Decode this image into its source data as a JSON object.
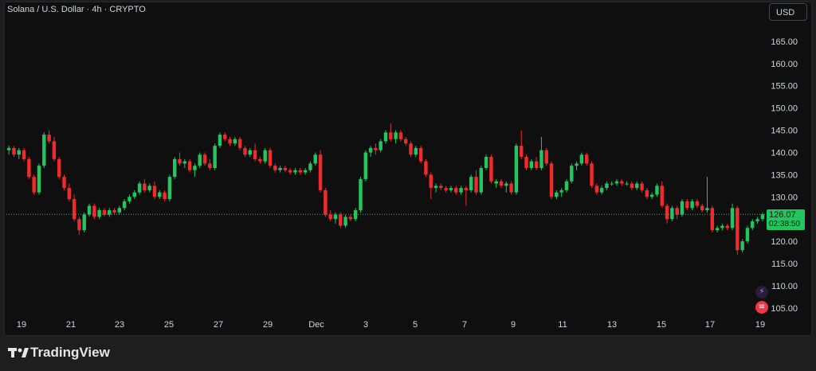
{
  "header": {
    "title": "Solana / U.S. Dollar · 4h · CRYPTO",
    "currency": "USD"
  },
  "price_label": {
    "value": "126.07",
    "countdown": "02:38:50"
  },
  "footer": {
    "brand": "TradingView"
  },
  "colors": {
    "up": "#22c55e",
    "down": "#ef2b2b",
    "background": "#0f0f0f",
    "axis_text": "#d1d4dc",
    "current_price_line": "#22c55e"
  },
  "icons": [
    "flash-indicator-icon",
    "us-flag-icon"
  ],
  "chart_data": {
    "type": "candlestick",
    "title": "Solana / U.S. Dollar · 4h · CRYPTO",
    "ylim": [
      103,
      170
    ],
    "y_ticks": [
      105,
      110,
      115,
      120,
      125,
      130,
      135,
      140,
      145,
      150,
      155,
      160,
      165
    ],
    "y_tick_labels": [
      "105.00",
      "110.00",
      "115.00",
      "120.00",
      "125.00",
      "130.00",
      "135.00",
      "140.00",
      "145.00",
      "150.00",
      "155.00",
      "160.00",
      "165.00"
    ],
    "x_ticks": [
      "19",
      "21",
      "23",
      "25",
      "27",
      "29",
      "Dec",
      "3",
      "5",
      "7",
      "9",
      "11",
      "13",
      "15",
      "17",
      "19"
    ],
    "grid": false,
    "current_price": 126.07,
    "candles": [
      [
        140.5,
        141.5,
        139.5,
        141.0
      ],
      [
        141.0,
        141.5,
        139.0,
        139.5
      ],
      [
        139.5,
        141.0,
        138.5,
        140.5
      ],
      [
        140.5,
        141.0,
        138.0,
        138.5
      ],
      [
        138.5,
        139.0,
        134.0,
        134.5
      ],
      [
        134.5,
        135.0,
        130.5,
        131.0
      ],
      [
        131.0,
        137.5,
        130.5,
        137.0
      ],
      [
        137.0,
        144.5,
        136.5,
        144.0
      ],
      [
        144.0,
        145.0,
        142.0,
        142.5
      ],
      [
        142.5,
        143.5,
        138.0,
        138.5
      ],
      [
        138.5,
        139.0,
        134.0,
        134.5
      ],
      [
        134.5,
        135.0,
        131.5,
        132.0
      ],
      [
        132.0,
        133.0,
        129.0,
        129.5
      ],
      [
        129.5,
        130.5,
        124.5,
        125.0
      ],
      [
        125.0,
        125.5,
        121.5,
        122.5
      ],
      [
        122.5,
        126.5,
        122.0,
        126.0
      ],
      [
        126.0,
        128.5,
        125.5,
        128.0
      ],
      [
        128.0,
        128.5,
        125.0,
        125.5
      ],
      [
        125.5,
        127.5,
        125.0,
        127.0
      ],
      [
        127.0,
        127.5,
        125.5,
        126.0
      ],
      [
        126.0,
        127.5,
        125.5,
        127.0
      ],
      [
        127.0,
        127.5,
        126.0,
        126.5
      ],
      [
        126.5,
        128.0,
        126.0,
        127.5
      ],
      [
        127.5,
        129.5,
        127.0,
        129.0
      ],
      [
        129.0,
        130.5,
        128.5,
        130.0
      ],
      [
        130.0,
        131.5,
        129.5,
        131.0
      ],
      [
        131.0,
        133.5,
        130.5,
        133.0
      ],
      [
        133.0,
        134.0,
        131.0,
        131.5
      ],
      [
        131.5,
        133.0,
        131.0,
        132.5
      ],
      [
        132.5,
        133.5,
        129.5,
        130.0
      ],
      [
        130.0,
        131.5,
        129.5,
        131.0
      ],
      [
        131.0,
        131.5,
        129.0,
        129.5
      ],
      [
        129.5,
        135.0,
        129.0,
        134.5
      ],
      [
        134.5,
        139.0,
        134.0,
        138.5
      ],
      [
        138.5,
        140.0,
        137.0,
        137.5
      ],
      [
        137.5,
        138.5,
        136.5,
        138.0
      ],
      [
        138.0,
        138.5,
        135.5,
        136.0
      ],
      [
        136.0,
        137.5,
        134.5,
        137.0
      ],
      [
        137.0,
        140.0,
        136.5,
        139.5
      ],
      [
        139.5,
        140.0,
        137.0,
        137.5
      ],
      [
        137.5,
        138.5,
        136.0,
        136.5
      ],
      [
        136.5,
        142.0,
        136.0,
        141.5
      ],
      [
        141.5,
        144.5,
        141.0,
        144.0
      ],
      [
        144.0,
        144.5,
        142.5,
        143.0
      ],
      [
        143.0,
        143.5,
        141.5,
        142.0
      ],
      [
        142.0,
        143.5,
        141.5,
        143.0
      ],
      [
        143.0,
        143.5,
        140.5,
        141.0
      ],
      [
        141.0,
        141.5,
        139.0,
        139.5
      ],
      [
        139.5,
        141.0,
        139.0,
        140.5
      ],
      [
        140.5,
        142.0,
        138.0,
        138.5
      ],
      [
        138.5,
        139.0,
        137.5,
        138.0
      ],
      [
        138.0,
        141.0,
        137.5,
        140.5
      ],
      [
        140.5,
        141.0,
        136.5,
        137.0
      ],
      [
        137.0,
        137.5,
        135.5,
        136.0
      ],
      [
        136.0,
        137.0,
        135.5,
        136.5
      ],
      [
        136.5,
        137.0,
        135.5,
        136.0
      ],
      [
        136.0,
        136.5,
        135.0,
        135.5
      ],
      [
        135.5,
        136.5,
        135.0,
        136.0
      ],
      [
        136.0,
        136.5,
        135.0,
        135.5
      ],
      [
        135.5,
        136.5,
        135.0,
        136.0
      ],
      [
        136.0,
        138.0,
        135.5,
        137.5
      ],
      [
        137.5,
        140.0,
        137.0,
        139.5
      ],
      [
        139.5,
        140.5,
        131.0,
        131.5
      ],
      [
        131.5,
        132.0,
        125.5,
        126.0
      ],
      [
        126.0,
        127.0,
        124.5,
        125.0
      ],
      [
        125.0,
        126.5,
        124.0,
        126.0
      ],
      [
        126.0,
        126.5,
        123.0,
        123.5
      ],
      [
        123.5,
        126.0,
        123.0,
        125.5
      ],
      [
        125.5,
        126.0,
        124.5,
        125.0
      ],
      [
        125.0,
        127.5,
        124.5,
        127.0
      ],
      [
        127.0,
        134.5,
        126.5,
        134.0
      ],
      [
        134.0,
        140.5,
        133.5,
        140.0
      ],
      [
        140.0,
        141.5,
        139.0,
        141.0
      ],
      [
        141.0,
        142.0,
        139.5,
        140.5
      ],
      [
        140.5,
        143.0,
        140.0,
        142.5
      ],
      [
        142.5,
        145.0,
        142.0,
        144.5
      ],
      [
        144.5,
        146.5,
        142.5,
        143.0
      ],
      [
        143.0,
        145.0,
        142.0,
        144.5
      ],
      [
        144.5,
        145.0,
        142.5,
        143.0
      ],
      [
        143.0,
        143.5,
        141.5,
        142.0
      ],
      [
        142.0,
        142.5,
        139.0,
        139.5
      ],
      [
        139.5,
        141.5,
        139.0,
        141.0
      ],
      [
        141.0,
        141.5,
        137.5,
        138.0
      ],
      [
        138.0,
        138.5,
        134.5,
        135.0
      ],
      [
        135.0,
        135.5,
        129.5,
        132.0
      ],
      [
        132.0,
        133.0,
        131.0,
        132.5
      ],
      [
        132.5,
        133.0,
        131.5,
        132.0
      ],
      [
        132.0,
        132.5,
        131.0,
        131.5
      ],
      [
        131.5,
        132.5,
        131.0,
        132.0
      ],
      [
        132.0,
        132.5,
        130.5,
        131.0
      ],
      [
        131.0,
        132.5,
        130.5,
        132.0
      ],
      [
        132.0,
        132.5,
        128.0,
        131.5
      ],
      [
        131.5,
        135.0,
        131.0,
        134.5
      ],
      [
        134.5,
        136.0,
        130.5,
        131.0
      ],
      [
        131.0,
        137.0,
        130.5,
        136.5
      ],
      [
        136.5,
        139.5,
        136.0,
        139.0
      ],
      [
        139.0,
        139.5,
        133.0,
        133.5
      ],
      [
        133.0,
        134.0,
        132.0,
        133.5
      ],
      [
        133.5,
        134.0,
        132.0,
        132.5
      ],
      [
        132.5,
        133.5,
        131.0,
        133.0
      ],
      [
        133.0,
        133.5,
        130.5,
        131.0
      ],
      [
        131.0,
        142.0,
        130.5,
        141.5
      ],
      [
        141.5,
        145.0,
        138.5,
        139.0
      ],
      [
        139.0,
        139.5,
        136.0,
        136.5
      ],
      [
        136.5,
        138.5,
        136.0,
        138.0
      ],
      [
        138.0,
        139.0,
        136.0,
        136.5
      ],
      [
        136.5,
        143.5,
        136.0,
        140.5
      ],
      [
        140.5,
        141.0,
        137.0,
        137.5
      ],
      [
        137.5,
        138.0,
        129.5,
        130.0
      ],
      [
        130.0,
        131.5,
        129.5,
        131.0
      ],
      [
        131.0,
        132.0,
        130.0,
        131.5
      ],
      [
        131.5,
        134.0,
        131.0,
        133.5
      ],
      [
        133.5,
        137.5,
        133.0,
        137.0
      ],
      [
        137.0,
        138.0,
        136.0,
        137.5
      ],
      [
        137.5,
        140.0,
        137.0,
        139.5
      ],
      [
        139.5,
        140.0,
        137.0,
        137.5
      ],
      [
        137.5,
        138.0,
        132.0,
        132.5
      ],
      [
        132.5,
        133.0,
        130.5,
        131.0
      ],
      [
        131.0,
        132.5,
        130.5,
        132.0
      ],
      [
        132.0,
        133.5,
        131.5,
        133.0
      ],
      [
        133.0,
        133.5,
        132.5,
        133.0
      ],
      [
        133.0,
        134.0,
        132.5,
        133.5
      ],
      [
        133.5,
        134.0,
        132.5,
        133.0
      ],
      [
        133.0,
        133.5,
        132.5,
        133.0
      ],
      [
        133.0,
        133.5,
        131.5,
        132.0
      ],
      [
        132.0,
        133.5,
        131.5,
        133.0
      ],
      [
        133.0,
        133.5,
        131.0,
        131.5
      ],
      [
        131.5,
        132.0,
        129.5,
        130.0
      ],
      [
        130.0,
        131.0,
        129.5,
        130.5
      ],
      [
        130.5,
        133.0,
        130.0,
        132.5
      ],
      [
        132.5,
        133.5,
        127.5,
        128.0
      ],
      [
        128.0,
        128.5,
        124.0,
        125.0
      ],
      [
        125.0,
        128.0,
        124.5,
        127.5
      ],
      [
        127.5,
        128.0,
        125.0,
        126.0
      ],
      [
        126.0,
        129.5,
        125.5,
        129.0
      ],
      [
        129.0,
        129.5,
        127.0,
        127.5
      ],
      [
        127.5,
        129.5,
        127.0,
        129.0
      ],
      [
        129.0,
        129.5,
        127.5,
        128.0
      ],
      [
        128.0,
        128.5,
        126.5,
        127.0
      ],
      [
        127.0,
        134.5,
        126.5,
        127.5
      ],
      [
        127.5,
        128.0,
        122.0,
        122.5
      ],
      [
        122.5,
        123.5,
        122.0,
        123.0
      ],
      [
        123.0,
        124.0,
        122.5,
        123.5
      ],
      [
        123.5,
        124.0,
        122.5,
        123.0
      ],
      [
        123.0,
        128.5,
        122.5,
        127.5
      ],
      [
        127.5,
        128.0,
        117.0,
        118.0
      ],
      [
        118.0,
        120.5,
        117.5,
        120.0
      ],
      [
        120.0,
        123.5,
        119.5,
        123.0
      ],
      [
        123.0,
        125.0,
        122.5,
        124.5
      ],
      [
        124.5,
        125.5,
        124.0,
        125.0
      ],
      [
        125.0,
        126.5,
        124.5,
        126.07
      ]
    ]
  }
}
